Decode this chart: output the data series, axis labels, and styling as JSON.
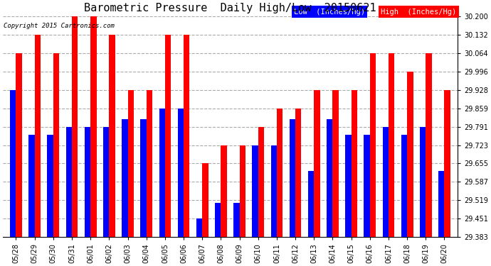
{
  "title": "Barometric Pressure  Daily High/Low  20150621",
  "copyright": "Copyright 2015 Cartronics.com",
  "legend_low": "Low  (Inches/Hg)",
  "legend_high": "High  (Inches/Hg)",
  "dates": [
    "05/28",
    "05/29",
    "05/30",
    "05/31",
    "06/01",
    "06/02",
    "06/03",
    "06/04",
    "06/05",
    "06/06",
    "06/07",
    "06/08",
    "06/09",
    "06/10",
    "06/11",
    "06/12",
    "06/13",
    "06/14",
    "06/15",
    "06/16",
    "06/17",
    "06/18",
    "06/19",
    "06/20"
  ],
  "low": [
    29.928,
    29.762,
    29.762,
    29.791,
    29.791,
    29.791,
    29.82,
    29.82,
    29.859,
    29.859,
    29.451,
    29.51,
    29.51,
    29.723,
    29.723,
    29.82,
    29.627,
    29.82,
    29.762,
    29.762,
    29.791,
    29.762,
    29.791,
    29.627
  ],
  "high": [
    30.064,
    30.132,
    30.064,
    30.2,
    30.2,
    30.132,
    29.928,
    29.928,
    30.132,
    30.132,
    29.655,
    29.723,
    29.723,
    29.791,
    29.859,
    29.859,
    29.928,
    29.928,
    29.928,
    30.064,
    30.064,
    29.996,
    30.064,
    29.928
  ],
  "ylim_low": 29.383,
  "ylim_high": 30.2,
  "yticks": [
    29.383,
    29.451,
    29.519,
    29.587,
    29.655,
    29.723,
    29.791,
    29.859,
    29.928,
    29.996,
    30.064,
    30.132,
    30.2
  ],
  "color_low": "#0000ff",
  "color_high": "#ff0000",
  "bg_color": "#ffffff",
  "grid_color": "#aaaaaa",
  "bar_width": 0.32,
  "title_fontsize": 11,
  "tick_fontsize": 7,
  "legend_fontsize": 7.5
}
